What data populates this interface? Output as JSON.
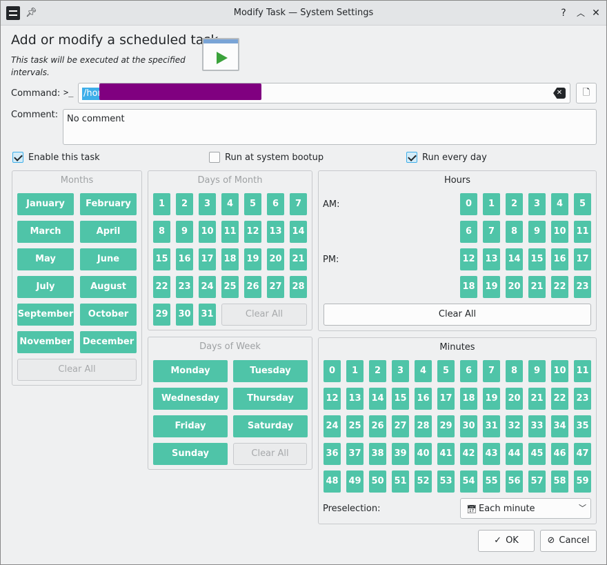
{
  "window": {
    "title": "Modify Task — System Settings"
  },
  "header": {
    "heading": "Add or modify a scheduled task",
    "subtitle": "This task will be executed at the specified intervals."
  },
  "command": {
    "label": "Command:",
    "value": "/hom"
  },
  "comment": {
    "label": "Comment:",
    "value": "No comment"
  },
  "options": {
    "enable": {
      "label": "Enable this task",
      "checked": true
    },
    "bootup": {
      "label": "Run at system bootup",
      "checked": false
    },
    "everyday": {
      "label": "Run every day",
      "checked": true
    }
  },
  "months": {
    "title": "Months",
    "items": [
      "January",
      "February",
      "March",
      "April",
      "May",
      "June",
      "July",
      "August",
      "September",
      "October",
      "November",
      "December"
    ],
    "clear": "Clear All"
  },
  "days_of_month": {
    "title": "Days of Month",
    "items": [
      "1",
      "2",
      "3",
      "4",
      "5",
      "6",
      "7",
      "8",
      "9",
      "10",
      "11",
      "12",
      "13",
      "14",
      "15",
      "16",
      "17",
      "18",
      "19",
      "20",
      "21",
      "22",
      "23",
      "24",
      "25",
      "26",
      "27",
      "28",
      "29",
      "30",
      "31"
    ],
    "clear": "Clear All"
  },
  "days_of_week": {
    "title": "Days of Week",
    "items": [
      "Monday",
      "Tuesday",
      "Wednesday",
      "Thursday",
      "Friday",
      "Saturday",
      "Sunday"
    ],
    "clear": "Clear All"
  },
  "hours": {
    "title": "Hours",
    "am_label": "AM:",
    "pm_label": "PM:",
    "items": [
      "0",
      "1",
      "2",
      "3",
      "4",
      "5",
      "6",
      "7",
      "8",
      "9",
      "10",
      "11",
      "12",
      "13",
      "14",
      "15",
      "16",
      "17",
      "18",
      "19",
      "20",
      "21",
      "22",
      "23"
    ],
    "clear": "Clear All"
  },
  "minutes": {
    "title": "Minutes",
    "items": [
      "0",
      "1",
      "2",
      "3",
      "4",
      "5",
      "6",
      "7",
      "8",
      "9",
      "10",
      "11",
      "12",
      "13",
      "14",
      "15",
      "16",
      "17",
      "18",
      "19",
      "20",
      "21",
      "22",
      "23",
      "24",
      "25",
      "26",
      "27",
      "28",
      "29",
      "30",
      "31",
      "32",
      "33",
      "34",
      "35",
      "36",
      "37",
      "38",
      "39",
      "40",
      "41",
      "42",
      "43",
      "44",
      "45",
      "46",
      "47",
      "48",
      "49",
      "50",
      "51",
      "52",
      "53",
      "54",
      "55",
      "56",
      "57",
      "58",
      "59"
    ],
    "preselection_label": "Preselection:",
    "preselection_value": "Each minute"
  },
  "actions": {
    "ok": "OK",
    "cancel": "Cancel"
  },
  "colors": {
    "tile": "#4fc4a8",
    "accent": "#3daee9"
  }
}
